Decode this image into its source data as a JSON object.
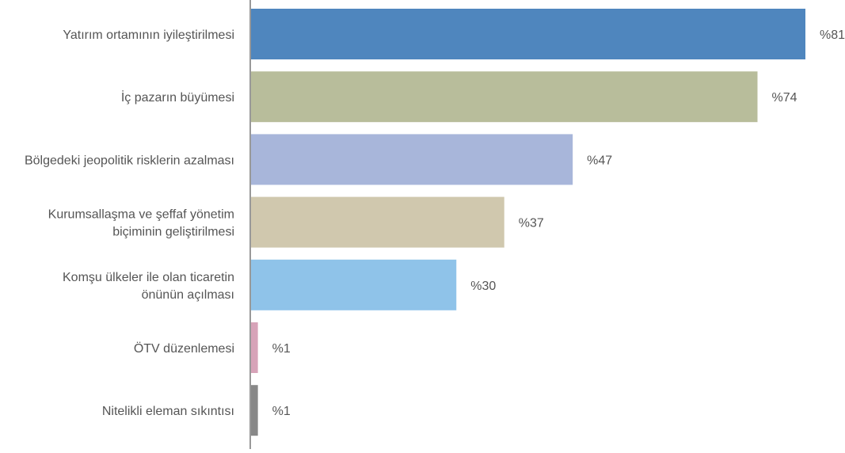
{
  "chart_data": {
    "type": "bar",
    "orientation": "horizontal",
    "categories": [
      [
        "Yatırım ortamının iyileştirilmesi"
      ],
      [
        "İç pazarın büyümesi"
      ],
      [
        "Bölgedeki jeopolitik risklerin azalması"
      ],
      [
        "Kurumsallaşma ve şeffaf yönetim",
        "biçiminin geliştirilmesi"
      ],
      [
        "Komşu ülkeler ile olan ticaretin",
        "önünün açılması"
      ],
      [
        "ÖTV düzenlemesi"
      ],
      [
        "Nitelikli eleman sıkıntısı"
      ]
    ],
    "values": [
      81,
      74,
      47,
      37,
      30,
      1,
      1
    ],
    "value_labels": [
      "%81",
      "%74",
      "%47",
      "%37",
      "%30",
      "%1",
      "%1"
    ],
    "colors": [
      "#4f86be",
      "#b8bd9b",
      "#a8b6da",
      "#d0c8ae",
      "#8fc3e9",
      "#d7a3b8",
      "#888888"
    ],
    "xlim": [
      0,
      81
    ],
    "grid": false,
    "legend": "none"
  }
}
